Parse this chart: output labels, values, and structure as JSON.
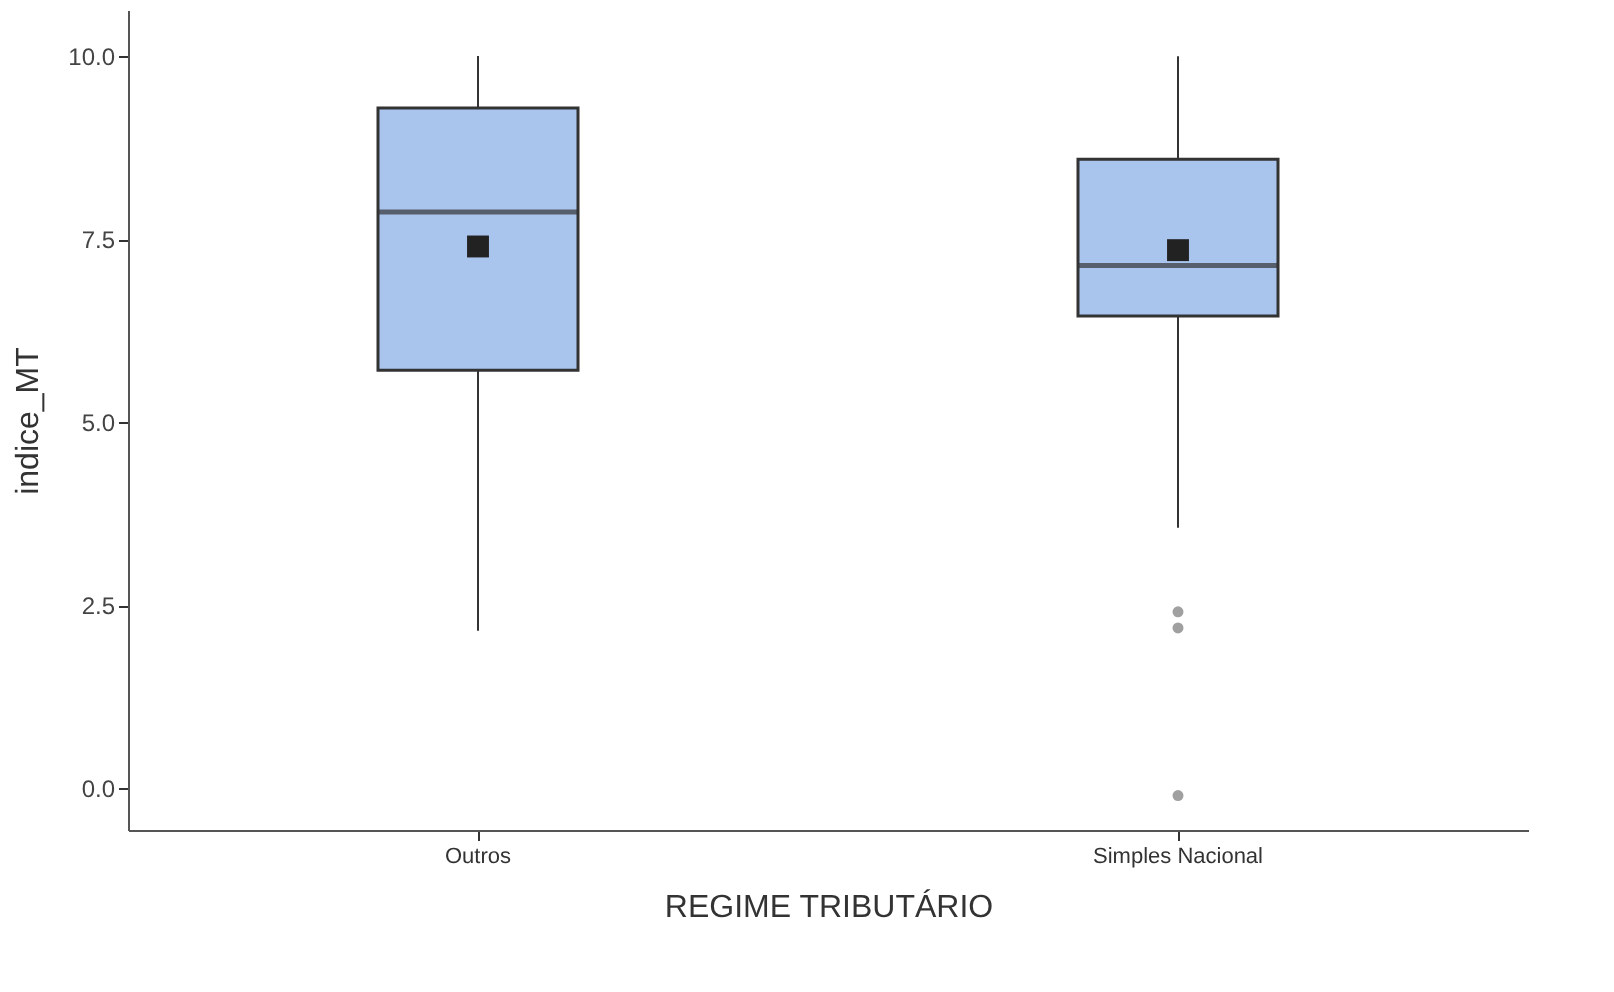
{
  "chart_data": {
    "type": "box",
    "xlabel": "REGIME TRIBUTÁRIO",
    "ylabel": "indice_MT",
    "categories": [
      "Outros",
      "Simples Nacional"
    ],
    "boxes": [
      {
        "low": 2.15,
        "q1": 5.71,
        "median": 7.87,
        "q3": 9.29,
        "high": 10.0,
        "mean": 7.4
      },
      {
        "low": 3.56,
        "q1": 6.45,
        "median": 7.14,
        "q3": 8.59,
        "high": 10.0,
        "mean": 7.35,
        "outliers": [
          2.41,
          2.19,
          -0.1
        ]
      }
    ],
    "color": "#a9c5ee",
    "ylim": [
      -0.57,
      10.63
    ],
    "yticks": [
      {
        "value": 0,
        "label": "0.0"
      },
      {
        "value": 2.5,
        "label": "2.5"
      },
      {
        "value": 5,
        "label": "5.0"
      },
      {
        "value": 7.5,
        "label": "7.5"
      },
      {
        "value": 10,
        "label": "10.0"
      }
    ],
    "grid": false
  }
}
